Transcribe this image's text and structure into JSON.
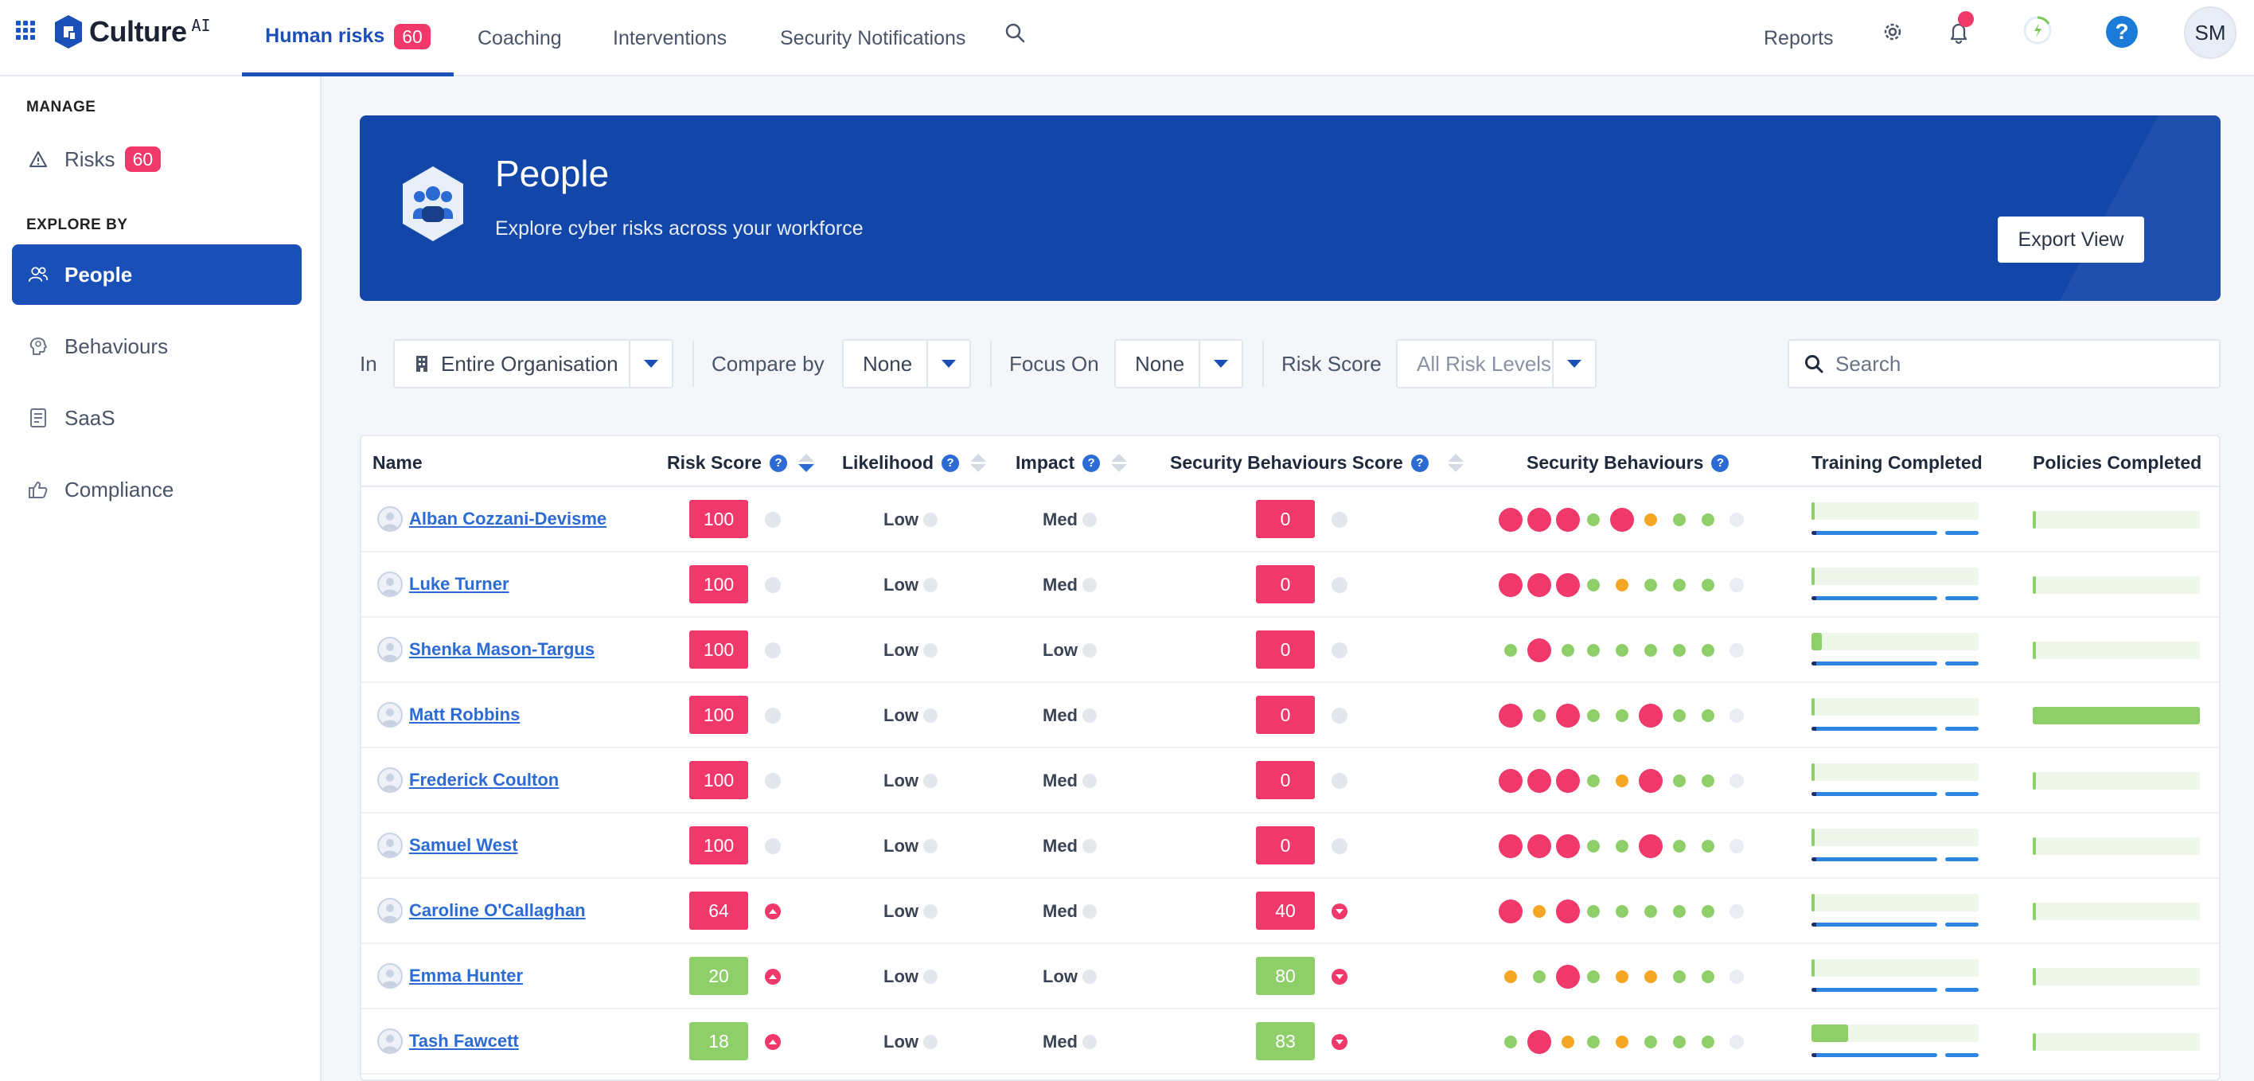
{
  "topnav": {
    "brand": "Culture",
    "brand_suffix": "AI",
    "tabs": [
      {
        "label": "Human risks",
        "badge": "60",
        "active": true
      },
      {
        "label": "Coaching"
      },
      {
        "label": "Interventions"
      },
      {
        "label": "Security Notifications"
      }
    ],
    "reports_label": "Reports",
    "avatar_initials": "SM"
  },
  "sidebar": {
    "manage_heading": "MANAGE",
    "risks_label": "Risks",
    "risks_badge": "60",
    "explore_heading": "EXPLORE BY",
    "items": [
      {
        "label": "People",
        "icon": "people-icon",
        "active": true
      },
      {
        "label": "Behaviours",
        "icon": "brain-icon"
      },
      {
        "label": "SaaS",
        "icon": "saas-icon"
      },
      {
        "label": "Compliance",
        "icon": "thumbs-up-icon"
      }
    ]
  },
  "hero": {
    "title": "People",
    "subtitle": "Explore cyber risks across your workforce",
    "export_label": "Export View"
  },
  "filters": {
    "in_label": "In",
    "in_value": "Entire Organisation",
    "compare_label": "Compare by",
    "compare_value": "None",
    "focus_label": "Focus On",
    "focus_value": "None",
    "risk_label": "Risk Score",
    "risk_value": "All Risk Levels",
    "search_placeholder": "Search"
  },
  "colors": {
    "high": "#f0386b",
    "medium": "#f5a623",
    "low": "#8ecf6a",
    "none": "#e9ecf2",
    "brand": "#1a4fb8"
  },
  "table": {
    "columns": {
      "name": "Name",
      "risk_score": "Risk Score",
      "likelihood": "Likelihood",
      "impact": "Impact",
      "sec_score": "Security Behaviours Score",
      "behaviours": "Security Behaviours",
      "training": "Training Completed",
      "policies": "Policies Completed"
    },
    "rows": [
      {
        "name": "Alban Cozzani-Devisme",
        "risk": "100",
        "risk_color": "high",
        "risk_trend": "none",
        "likelihood": "Low",
        "impact": "Med",
        "sec": "0",
        "sec_color": "high",
        "sec_trend": "none",
        "behaviours": [
          "high",
          "high",
          "high",
          "low",
          "high",
          "medium",
          "low",
          "low",
          "none"
        ],
        "training": 0.02,
        "training_progress": 0.75,
        "policies": 0.02
      },
      {
        "name": "Luke Turner",
        "risk": "100",
        "risk_color": "high",
        "risk_trend": "none",
        "likelihood": "Low",
        "impact": "Med",
        "sec": "0",
        "sec_color": "high",
        "sec_trend": "none",
        "behaviours": [
          "high",
          "high",
          "high",
          "low",
          "medium",
          "low",
          "low",
          "low",
          "none"
        ],
        "training": 0.02,
        "training_progress": 0.75,
        "policies": 0.02
      },
      {
        "name": "Shenka Mason-Targus",
        "risk": "100",
        "risk_color": "high",
        "risk_trend": "none",
        "likelihood": "Low",
        "impact": "Low",
        "sec": "0",
        "sec_color": "high",
        "sec_trend": "none",
        "behaviours": [
          "low",
          "high",
          "low",
          "low",
          "low",
          "low",
          "low",
          "low",
          "none"
        ],
        "training": 0.06,
        "training_progress": 0.75,
        "policies": 0.02
      },
      {
        "name": "Matt Robbins",
        "risk": "100",
        "risk_color": "high",
        "risk_trend": "none",
        "likelihood": "Low",
        "impact": "Med",
        "sec": "0",
        "sec_color": "high",
        "sec_trend": "none",
        "behaviours": [
          "high",
          "low",
          "high",
          "low",
          "low",
          "high",
          "low",
          "low",
          "none"
        ],
        "training": 0.02,
        "training_progress": 0.75,
        "policies": 1.0
      },
      {
        "name": "Frederick Coulton",
        "risk": "100",
        "risk_color": "high",
        "risk_trend": "none",
        "likelihood": "Low",
        "impact": "Med",
        "sec": "0",
        "sec_color": "high",
        "sec_trend": "none",
        "behaviours": [
          "high",
          "high",
          "high",
          "low",
          "medium",
          "high",
          "low",
          "low",
          "none"
        ],
        "training": 0.02,
        "training_progress": 0.75,
        "policies": 0.02
      },
      {
        "name": "Samuel West",
        "risk": "100",
        "risk_color": "high",
        "risk_trend": "none",
        "likelihood": "Low",
        "impact": "Med",
        "sec": "0",
        "sec_color": "high",
        "sec_trend": "none",
        "behaviours": [
          "high",
          "high",
          "high",
          "low",
          "low",
          "high",
          "low",
          "low",
          "none"
        ],
        "training": 0.02,
        "training_progress": 0.75,
        "policies": 0.02
      },
      {
        "name": "Caroline O'Callaghan",
        "risk": "64",
        "risk_color": "high",
        "risk_trend": "up",
        "likelihood": "Low",
        "impact": "Med",
        "sec": "40",
        "sec_color": "high",
        "sec_trend": "down",
        "behaviours": [
          "high",
          "medium",
          "high",
          "low",
          "low",
          "low",
          "low",
          "low",
          "none"
        ],
        "training": 0.02,
        "training_progress": 0.75,
        "policies": 0.02
      },
      {
        "name": "Emma Hunter",
        "risk": "20",
        "risk_color": "low",
        "risk_trend": "up",
        "likelihood": "Low",
        "impact": "Low",
        "sec": "80",
        "sec_color": "low",
        "sec_trend": "down",
        "behaviours": [
          "medium",
          "low",
          "high",
          "low",
          "medium",
          "medium",
          "low",
          "low",
          "none"
        ],
        "training": 0.02,
        "training_progress": 0.75,
        "policies": 0.02
      },
      {
        "name": "Tash Fawcett",
        "risk": "18",
        "risk_color": "low",
        "risk_trend": "up",
        "likelihood": "Low",
        "impact": "Med",
        "sec": "83",
        "sec_color": "low",
        "sec_trend": "down",
        "behaviours": [
          "low",
          "high",
          "medium",
          "low",
          "medium",
          "low",
          "low",
          "low",
          "none"
        ],
        "training": 0.22,
        "training_progress": 0.75,
        "policies": 0.02
      }
    ]
  }
}
